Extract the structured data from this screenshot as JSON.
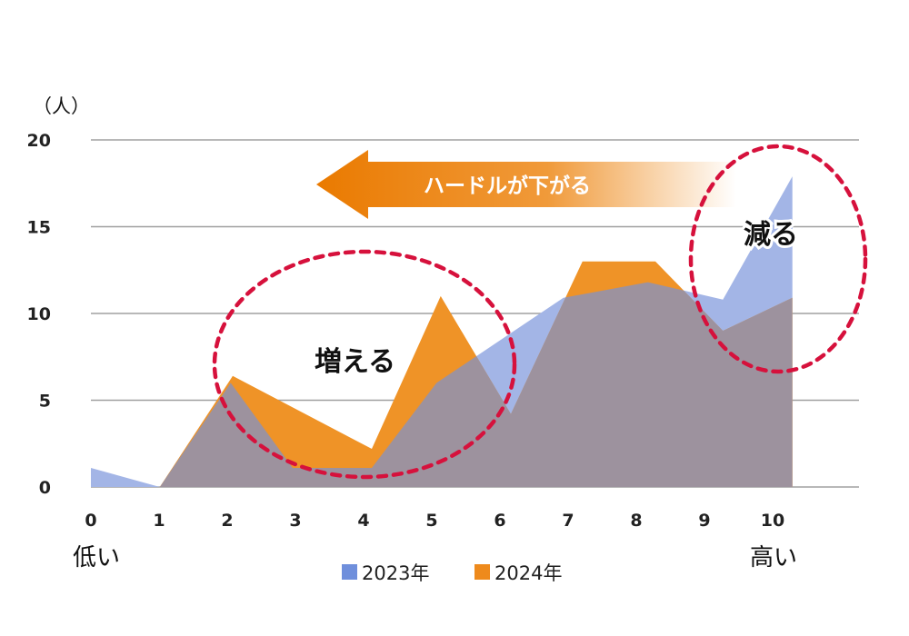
{
  "chart_data": {
    "type": "area",
    "unit_label": "（人）",
    "xlim": [
      0,
      11.3
    ],
    "ylim": [
      0,
      20
    ],
    "x_ticks": [
      "0",
      "1",
      "2",
      "3",
      "4",
      "5",
      "6",
      "7",
      "8",
      "9",
      "10"
    ],
    "y_ticks": [
      "0",
      "5",
      "10",
      "15",
      "20"
    ],
    "grid": true,
    "x_low_label": "低い",
    "x_high_label": "高い",
    "legend_placement": "bottom",
    "series": [
      {
        "name": "2023年",
        "color": "#a3b5e6",
        "legend_color": "#6f8fdc",
        "points": [
          [
            0,
            1.1
          ],
          [
            1.01,
            0
          ],
          [
            2.05,
            6.0
          ],
          [
            2.96,
            1.1
          ],
          [
            4.12,
            1.1
          ],
          [
            5.07,
            6.0
          ],
          [
            6.93,
            10.9
          ],
          [
            8.17,
            11.8
          ],
          [
            9.27,
            10.8
          ],
          [
            10.29,
            17.9
          ]
        ]
      },
      {
        "name": "2024年",
        "color": "#ef9327",
        "legend_color": "#ee8a1c",
        "points": [
          [
            1.01,
            0
          ],
          [
            2.08,
            6.4
          ],
          [
            4.12,
            2.2
          ],
          [
            5.13,
            11.0
          ],
          [
            6.16,
            4.2
          ],
          [
            7.21,
            13.0
          ],
          [
            8.28,
            13.0
          ],
          [
            9.27,
            9.0
          ],
          [
            10.29,
            10.9
          ]
        ]
      }
    ],
    "overlap_color": "#9d929e",
    "annotations": {
      "arrow_text": "ハードルが下がる",
      "increase_text": "増える",
      "decrease_text": "減る",
      "ellipse_color": "#d6113c"
    }
  }
}
